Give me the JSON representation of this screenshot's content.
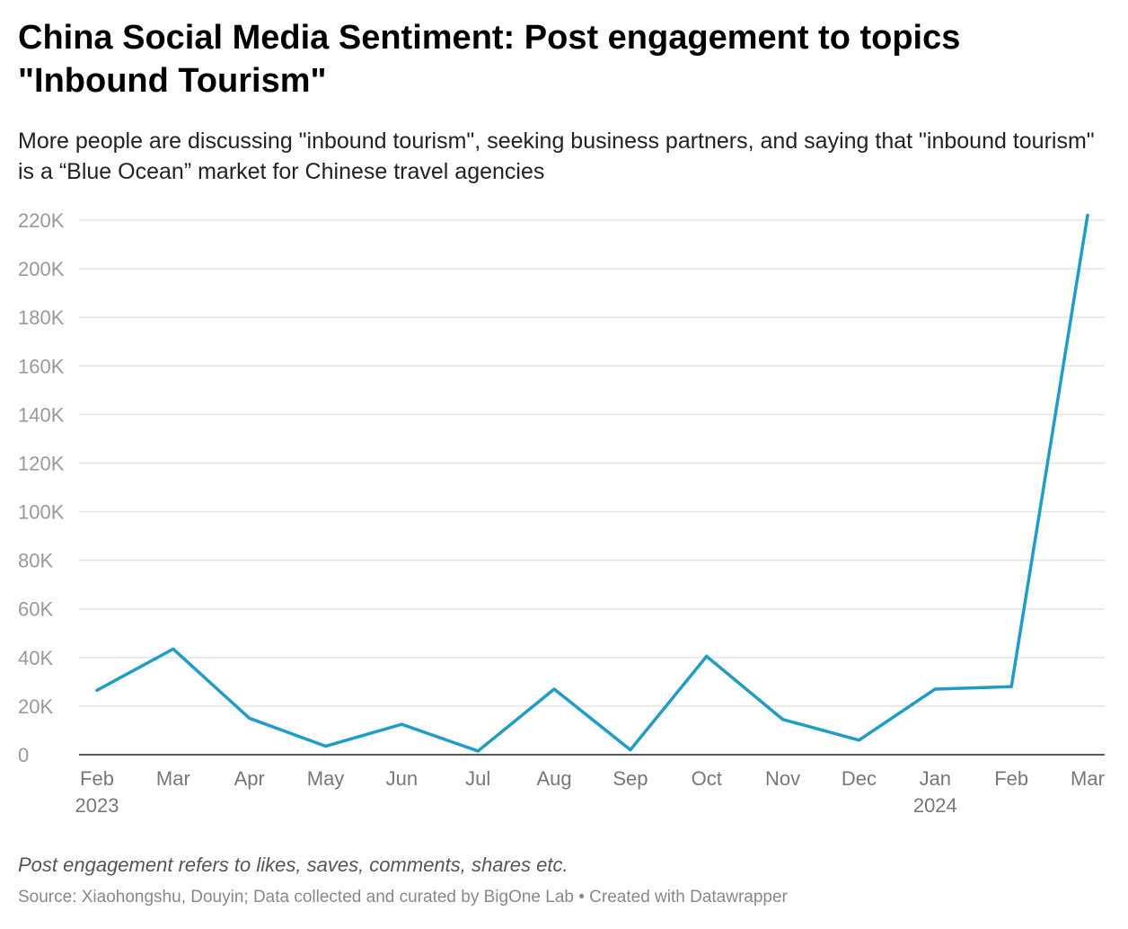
{
  "title": "China Social Media Sentiment: Post engagement to topics \"Inbound Tourism\"",
  "subtitle": "More people are discussing \"inbound tourism\", seeking business partners, and saying that \"inbound tourism\" is a “Blue Ocean” market for Chinese travel agencies",
  "note": "Post engagement refers to likes, saves, comments, shares etc.",
  "source": "Source: Xiaohongshu, Douyin; Data collected and curated by BigOne Lab • Created with Datawrapper",
  "colors": {
    "line": "#1f9cc8",
    "grid": "#e3e3e3",
    "axis": "#222222"
  },
  "chart_data": {
    "type": "line",
    "categories": [
      "Feb",
      "Mar",
      "Apr",
      "May",
      "Jun",
      "Jul",
      "Aug",
      "Sep",
      "Oct",
      "Nov",
      "Dec",
      "Jan",
      "Feb",
      "Mar"
    ],
    "year_labels": [
      "2023",
      "",
      "",
      "",
      "",
      "",
      "",
      "",
      "",
      "",
      "",
      "2024",
      "",
      ""
    ],
    "series": [
      {
        "values": [
          26500,
          43500,
          15000,
          3500,
          12500,
          1500,
          27000,
          2000,
          40500,
          14500,
          6000,
          27000,
          28000,
          222000
        ]
      }
    ],
    "ylim": [
      0,
      220000
    ],
    "yticks": [
      0,
      20000,
      40000,
      60000,
      80000,
      100000,
      120000,
      140000,
      160000,
      180000,
      200000,
      220000
    ],
    "ytick_labels": [
      "0",
      "20K",
      "40K",
      "60K",
      "80K",
      "100K",
      "120K",
      "140K",
      "160K",
      "180K",
      "200K",
      "220K"
    ],
    "grid": true,
    "xlabel": "",
    "ylabel": ""
  }
}
